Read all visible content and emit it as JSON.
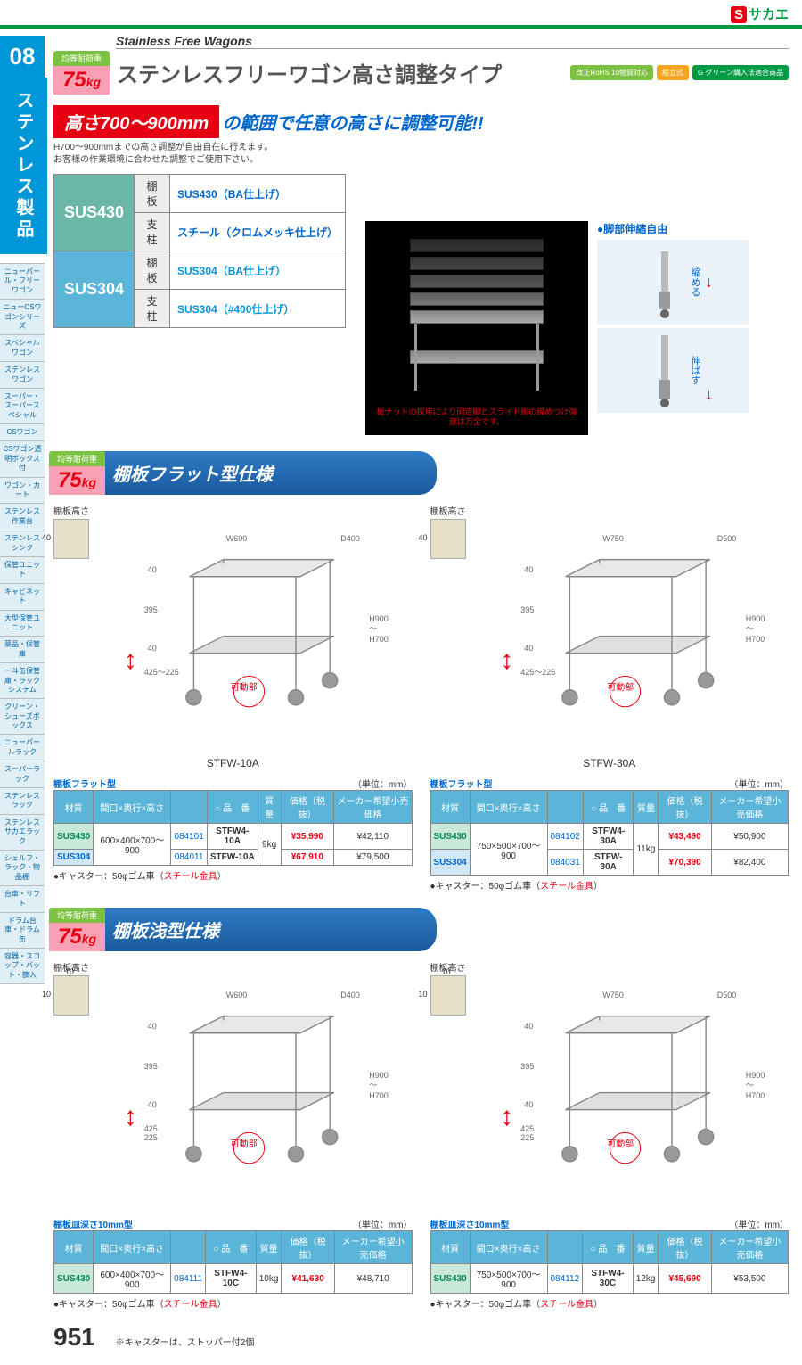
{
  "brand": {
    "s": "S",
    "name": "サカエ"
  },
  "side": {
    "num": "08",
    "cat": "ステンレス製品",
    "menu": [
      "ニューパール・フリーワゴン",
      "ニューCSワゴンシリーズ",
      "スペシャルワゴン",
      "ステンレスワゴン",
      "スーパー・スーパースペシャル",
      "CSワゴン",
      "CSワゴン透明ボックス付",
      "ワゴン・カート",
      "ステンレス作業台",
      "ステンレスシンク",
      "保管ユニット",
      "キャビネット",
      "大型保管ユニット",
      "薬品・保管庫",
      "一斗缶保管庫・ラックシステム",
      "クリーン・シューズボックス",
      "ニューパールラック",
      "スーパーラック",
      "ステンレスラック",
      "ステンレスサカエラック",
      "シェルフ・ラック・物品棚",
      "台車・リフト",
      "ドラム台車・ドラム缶",
      "容器・スコップ・バット・篩入"
    ]
  },
  "header": {
    "eng": "Stainless Free Wagons",
    "load_label": "均等耐荷重",
    "load_val": "75",
    "load_unit": "kg",
    "title": "ステンレスフリーワゴン高さ調整タイプ",
    "rohs": "改正RoHS 10物質対応",
    "kumi": "組立式",
    "green": "G グリーン購入法適合商品"
  },
  "range": {
    "bar": "高さ700～900mm",
    "txt": "の範囲で任意の高さに調整可能!!",
    "desc1": "H700～900mmまでの高さ調整が自由自在に行えます。",
    "desc2": "お客様の作業環境に合わせた調整でご使用下さい。"
  },
  "mat": {
    "r": [
      {
        "h": "SUS430",
        "cls": "",
        "rows": [
          [
            "棚板",
            "SUS430（BA仕上げ）"
          ],
          [
            "支柱",
            "スチール（クロムメッキ仕上げ）"
          ]
        ]
      },
      {
        "h": "SUS304",
        "cls": "b",
        "rows": [
          [
            "棚板",
            "SUS304（BA仕上げ）"
          ],
          [
            "支柱",
            "SUS304（#400仕上げ）"
          ]
        ]
      }
    ]
  },
  "hero": {
    "cap": "板ナットの採用により固定脚とスライド脚の締めつけ強度は万全です。",
    "side_title": "●脚部伸縮自由",
    "shrink": "縮める",
    "extend": "伸ばす"
  },
  "sections": [
    {
      "title": "棚板フラット型仕様",
      "shelf_label": "棚板高さ",
      "sh_dim": "40",
      "products": [
        {
          "dims": {
            "w": "W600",
            "d": "D400",
            "h": "H900～H700",
            "t1": "40",
            "mid": "395",
            "t2": "40",
            "adj": "425～225"
          },
          "movable": "可動部",
          "model": "STFW-10A",
          "spec_title": "棚板フラット型",
          "unit": "（単位：mm）",
          "headers": [
            "材質",
            "間口×奥行×高さ",
            "",
            "○ 品　番",
            "質量",
            "価格（税抜）",
            "メーカー希望小売価格"
          ],
          "rows": [
            {
              "mat": "SUS430",
              "matcls": "mat430",
              "size": "600×400×700～900",
              "code": "084101",
              "model": "STFW4-10A",
              "wt": "9kg",
              "price": "¥35,990",
              "msrp": "¥42,110",
              "rs": true
            },
            {
              "mat": "SUS304",
              "matcls": "mat304",
              "size": "",
              "code": "084011",
              "model": "STFW-10A",
              "wt": "",
              "price": "¥67,910",
              "msrp": "¥79,500"
            }
          ],
          "caster": "●キャスター：50φゴム車（",
          "caster_red": "スチール金具",
          "caster_end": "）"
        },
        {
          "dims": {
            "w": "W750",
            "d": "D500",
            "h": "H900～H700",
            "t1": "40",
            "mid": "395",
            "t2": "40",
            "adj": "425～225"
          },
          "movable": "可動部",
          "model": "STFW-30A",
          "spec_title": "棚板フラット型",
          "unit": "（単位：mm）",
          "headers": [
            "材質",
            "間口×奥行×高さ",
            "",
            "○ 品　番",
            "質量",
            "価格（税抜）",
            "メーカー希望小売価格"
          ],
          "rows": [
            {
              "mat": "SUS430",
              "matcls": "mat430",
              "size": "750×500×700～900",
              "code": "084102",
              "model": "STFW4-30A",
              "wt": "11kg",
              "price": "¥43,490",
              "msrp": "¥50,900",
              "rs": true
            },
            {
              "mat": "SUS304",
              "matcls": "mat304",
              "size": "",
              "code": "084031",
              "model": "STFW-30A",
              "wt": "",
              "price": "¥70,390",
              "msrp": "¥82,400"
            }
          ],
          "caster": "●キャスター：50φゴム車（",
          "caster_red": "スチール金具",
          "caster_end": "）"
        }
      ]
    },
    {
      "title": "棚板浅型仕様",
      "shelf_label": "棚板高さ",
      "sh_dim": "10",
      "sh_dim2": "10",
      "products": [
        {
          "dims": {
            "w": "W600",
            "d": "D400",
            "h": "H900～H700",
            "t1": "40",
            "mid": "395",
            "t2": "40",
            "adj1": "425",
            "adj2": "225"
          },
          "movable": "可動部",
          "model": "",
          "spec_title": "棚板皿深さ10mm型",
          "unit": "（単位：mm）",
          "headers": [
            "材質",
            "間口×奥行×高さ",
            "",
            "○ 品　番",
            "質量",
            "価格（税抜）",
            "メーカー希望小売価格"
          ],
          "rows": [
            {
              "mat": "SUS430",
              "matcls": "mat430",
              "size": "600×400×700～900",
              "code": "084111",
              "model": "STFW4-10C",
              "wt": "10kg",
              "price": "¥41,630",
              "msrp": "¥48,710"
            }
          ],
          "caster": "●キャスター：50φゴム車（",
          "caster_red": "スチール金具",
          "caster_end": "）"
        },
        {
          "dims": {
            "w": "W750",
            "d": "D500",
            "h": "H900～H700",
            "t1": "40",
            "mid": "395",
            "t2": "40",
            "adj1": "425",
            "adj2": "225"
          },
          "movable": "可動部",
          "model": "",
          "spec_title": "棚板皿深さ10mm型",
          "unit": "（単位：mm）",
          "headers": [
            "材質",
            "間口×奥行×高さ",
            "",
            "○ 品　番",
            "質量",
            "価格（税抜）",
            "メーカー希望小売価格"
          ],
          "rows": [
            {
              "mat": "SUS430",
              "matcls": "mat430",
              "size": "750×500×700～900",
              "code": "084112",
              "model": "STFW4-30C",
              "wt": "12kg",
              "price": "¥45,690",
              "msrp": "¥53,500"
            }
          ],
          "caster": "●キャスター：50φゴム車（",
          "caster_red": "スチール金具",
          "caster_end": "）"
        }
      ]
    }
  ],
  "page_num": "951",
  "foot": "※キャスターは、ストッパー付2個"
}
